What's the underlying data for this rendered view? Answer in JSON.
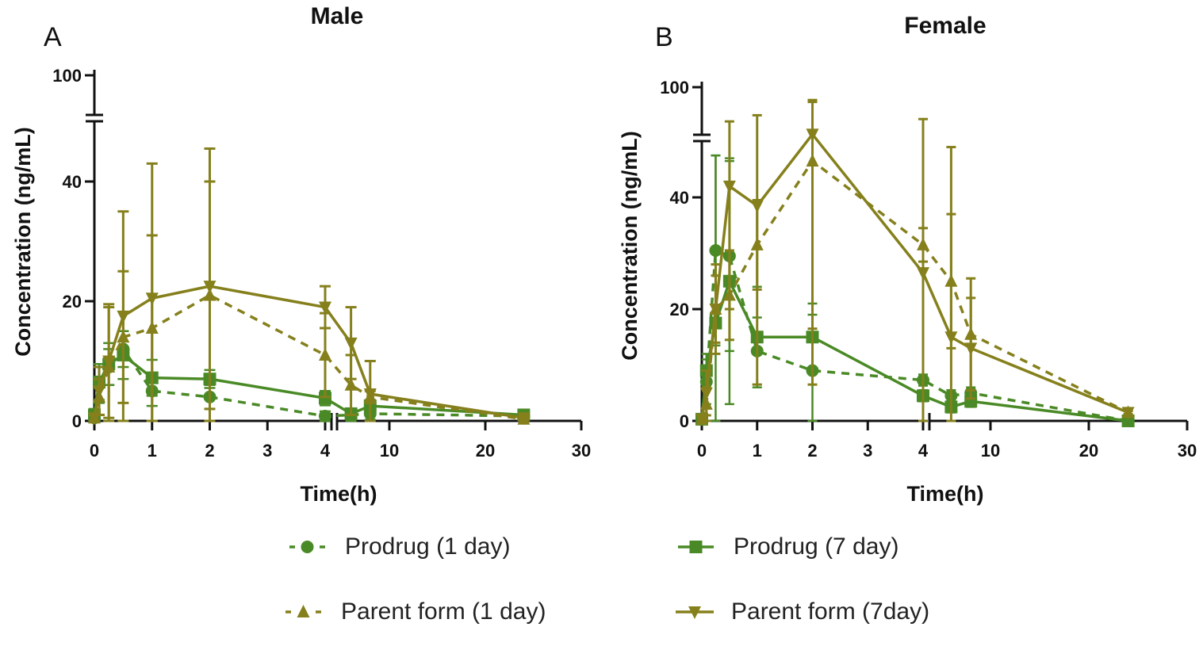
{
  "colors": {
    "prodrug": "#4a8a26",
    "parent": "#85801c",
    "axis": "#111111"
  },
  "legend": {
    "items": [
      "Prodrug (1 day)",
      "Prodrug (7 day)",
      "Parent form (1 day)",
      "Parent form (7day)"
    ]
  },
  "chart_data": [
    {
      "type": "line",
      "panel": "A",
      "title": "Male",
      "xlabel": "Time(h)",
      "ylabel": "Concentration (ng/mL)",
      "x_ticks": [
        0,
        1,
        2,
        3,
        4,
        10,
        20,
        30
      ],
      "y_ticks": [
        0,
        20,
        40,
        100
      ],
      "x_axis_break": [
        4,
        4.2
      ],
      "y_axis_break": [
        50,
        50
      ],
      "x": [
        0,
        0.083,
        0.25,
        0.5,
        1,
        2,
        4,
        6,
        8,
        24
      ],
      "series": [
        {
          "name": "Prodrug (1 day)",
          "values": [
            0.5,
            6,
            9,
            12,
            5,
            4,
            0.8,
            1,
            1.2,
            0.8
          ],
          "sd": [
            0.5,
            3,
            3,
            3,
            2.5,
            2,
            0.8,
            1,
            1,
            0.5
          ]
        },
        {
          "name": "Prodrug (7 day)",
          "values": [
            1,
            6.5,
            9.5,
            11,
            7.2,
            7,
            3.8,
            1.2,
            2.5,
            1
          ],
          "sd": [
            1,
            3,
            3.5,
            4,
            3,
            1.5,
            1.2,
            0.8,
            1,
            0.5
          ]
        },
        {
          "name": "Parent form (1 day)",
          "values": [
            0.5,
            4,
            9,
            14,
            15.5,
            21,
            11,
            6,
            4,
            0.3
          ],
          "sd": [
            0.5,
            3,
            10,
            11,
            15.5,
            19,
            7,
            5,
            1,
            0.2
          ]
        },
        {
          "name": "Parent form (7day)",
          "values": [
            0.5,
            5,
            10,
            17.5,
            20.5,
            22.5,
            19,
            13,
            4.5,
            0.5
          ],
          "sd": [
            0.5,
            4,
            9.5,
            17.5,
            22.5,
            23,
            3.5,
            6,
            5.5,
            0.3
          ]
        }
      ]
    },
    {
      "type": "line",
      "panel": "B",
      "title": "Female",
      "xlabel": "Time(h)",
      "ylabel": "Concentration (ng/mL)",
      "x_ticks": [
        0,
        1,
        2,
        3,
        4,
        10,
        20,
        30
      ],
      "y_ticks": [
        0,
        20,
        40,
        100
      ],
      "x_axis_break": [
        4,
        4.2
      ],
      "y_axis_break": [
        50,
        50
      ],
      "x": [
        0,
        0.083,
        0.25,
        0.5,
        1,
        2,
        4,
        6,
        8,
        24
      ],
      "series": [
        {
          "name": "Prodrug (1 day)",
          "values": [
            0.3,
            7,
            30.5,
            29.5,
            12.5,
            9,
            7.3,
            4.5,
            5,
            0
          ],
          "sd": [
            0.3,
            4,
            17,
            17,
            6,
            10,
            1,
            1,
            1,
            0
          ]
        },
        {
          "name": "Prodrug (7 day)",
          "values": [
            0.3,
            9,
            17.5,
            25,
            15,
            15,
            4.5,
            2.5,
            3.5,
            0
          ],
          "sd": [
            0.3,
            3,
            30,
            22,
            9,
            6,
            1,
            1,
            1,
            0
          ]
        },
        {
          "name": "Parent form (1 day)",
          "values": [
            0.3,
            3,
            20,
            22.5,
            31.5,
            46.5,
            31.5,
            25,
            15.5,
            1.5
          ],
          "sd": [
            0.3,
            3,
            6,
            8,
            8,
            40,
            3,
            12,
            10,
            0.3
          ]
        },
        {
          "name": "Parent form (7day)",
          "values": [
            0.3,
            5,
            20,
            42,
            38.5,
            50.5,
            26.5,
            15,
            13,
            1.5
          ],
          "sd": [
            0.3,
            4,
            8,
            22,
            32,
            34,
            40,
            34,
            9,
            0.3
          ]
        }
      ]
    }
  ]
}
